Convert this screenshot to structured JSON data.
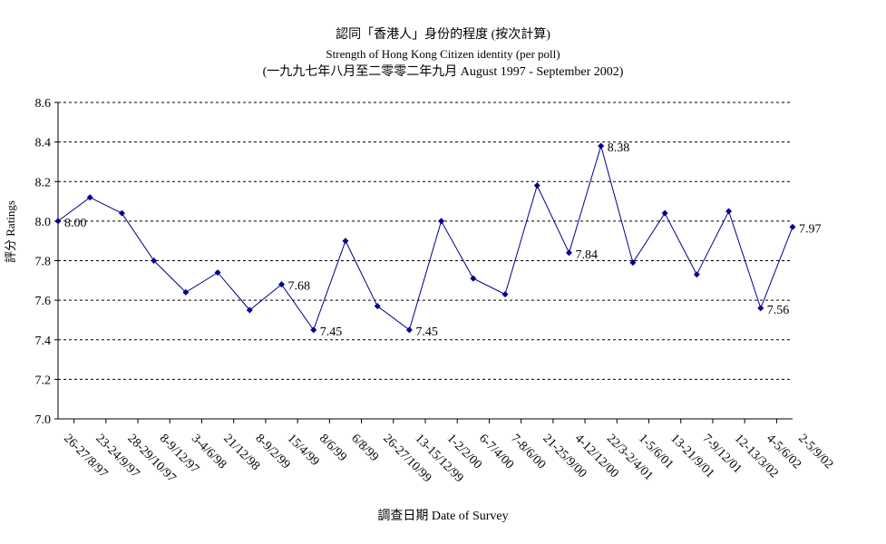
{
  "chart_data": {
    "type": "line",
    "title": "認同「香港人」身份的程度 (按次計算)",
    "subtitle": "Strength of Hong Kong Citizen identity (per poll)",
    "period": "(一九九七年八月至二零零二年九月 August 1997 - September 2002)",
    "xlabel": "調查日期 Date of Survey",
    "ylabel": "評分 Ratings",
    "ylim": [
      7.0,
      8.6
    ],
    "yticks": [
      "7.0",
      "7.2",
      "7.4",
      "7.6",
      "7.8",
      "8.0",
      "8.2",
      "8.4",
      "8.6"
    ],
    "grid": true,
    "categories": [
      "26-27/8/97",
      "23-24/9/97",
      "28-29/10/97",
      "8-9/12/97",
      "3-4/6/98",
      "21/12/98",
      "8-9/2/99",
      "15/4/99",
      "8/6/99",
      "6/8/99",
      "26-27/10/99",
      "13-15/12/99",
      "1-2/2/00",
      "6-7/4/00",
      "7-8/6/00",
      "21-25/9/00",
      "4-12/12/00",
      "22/3-2/4/01",
      "1-5/6/01",
      "13-21/9/01",
      "7-9/12/01",
      "12-13/3/02",
      "4-5/6/02",
      "2-5/9/02"
    ],
    "series": [
      {
        "values": [
          8.0,
          8.12,
          8.04,
          7.8,
          7.64,
          7.74,
          7.55,
          7.68,
          7.45,
          7.9,
          7.57,
          7.45,
          8.0,
          7.71,
          7.63,
          8.18,
          7.84,
          8.38,
          7.79,
          8.04,
          7.73,
          8.05,
          7.56,
          7.97
        ],
        "color": "#00008B"
      }
    ],
    "annotations": [
      {
        "index": 0,
        "label": "8.00"
      },
      {
        "index": 7,
        "label": "7.68"
      },
      {
        "index": 8,
        "label": "7.45"
      },
      {
        "index": 11,
        "label": "7.45"
      },
      {
        "index": 16,
        "label": "7.84"
      },
      {
        "index": 17,
        "label": "8.38"
      },
      {
        "index": 22,
        "label": "7.56"
      },
      {
        "index": 23,
        "label": "7.97"
      }
    ]
  }
}
